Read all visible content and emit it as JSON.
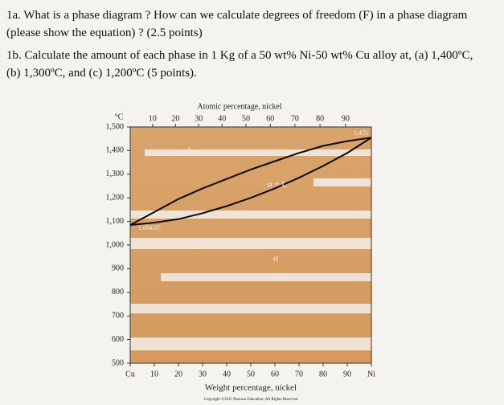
{
  "questions": [
    {
      "text": "1a. What is a phase diagram ? How can we calculate degrees of freedom (F) in a phase diagram (please show the equation) ? (2.5 points)"
    },
    {
      "text": "1b. Calculate the amount of each phase in 1 Kg of a 50 wt% Ni-50 wt% Cu alloy at, (a) 1,400ºC, (b) 1,300ºC, and (c) 1,200ºC (5 points)."
    }
  ],
  "chart_data": {
    "type": "line",
    "x2label": "Atomic percentage, nickel",
    "xlabel": "Weight percentage, nickel",
    "ylabel": "°C",
    "x": [
      0,
      10,
      20,
      30,
      40,
      50,
      60,
      70,
      80,
      90,
      100
    ],
    "series": [
      {
        "color": "#0a0a0a",
        "values": [
          1084.87,
          1140,
          1195,
          1240,
          1280,
          1320,
          1355,
          1390,
          1420,
          1440,
          1455
        ]
      },
      {
        "color": "#0a0a0a",
        "values": [
          1084.87,
          1095,
          1110,
          1135,
          1165,
          1200,
          1240,
          1285,
          1335,
          1390,
          1455
        ]
      }
    ],
    "xlim": [
      0,
      100
    ],
    "ylim": [
      500,
      1500
    ],
    "xticks": [
      {
        "value": 0,
        "label": "Cu"
      },
      10,
      20,
      30,
      40,
      50,
      60,
      70,
      80,
      90,
      {
        "value": 100,
        "label": "Ni"
      }
    ],
    "x2ticks": [
      {
        "value": 9.3,
        "label": "10"
      },
      {
        "value": 18.8,
        "label": "20"
      },
      {
        "value": 28.4,
        "label": "30"
      },
      {
        "value": 38.1,
        "label": "40"
      },
      {
        "value": 48,
        "label": "50"
      },
      {
        "value": 58.1,
        "label": "60"
      },
      {
        "value": 68.3,
        "label": "70"
      },
      {
        "value": 78.7,
        "label": "80"
      },
      {
        "value": 89.3,
        "label": "90"
      }
    ],
    "yticks": [
      {
        "value": 1500,
        "label": "1,500"
      },
      {
        "value": 1400,
        "label": "1,400"
      },
      {
        "value": 1300,
        "label": "1,300"
      },
      {
        "value": 1200,
        "label": "1,200"
      },
      {
        "value": 1100,
        "label": "1,100"
      },
      {
        "value": 1000,
        "label": "1,000"
      },
      900,
      800,
      700,
      600,
      500
    ],
    "annotations": [
      "L",
      "α + L",
      "α",
      "1,455",
      "1,084.87"
    ]
  },
  "copyright": "Copyright ©2015 Pearson Education, All Rights Reserved"
}
